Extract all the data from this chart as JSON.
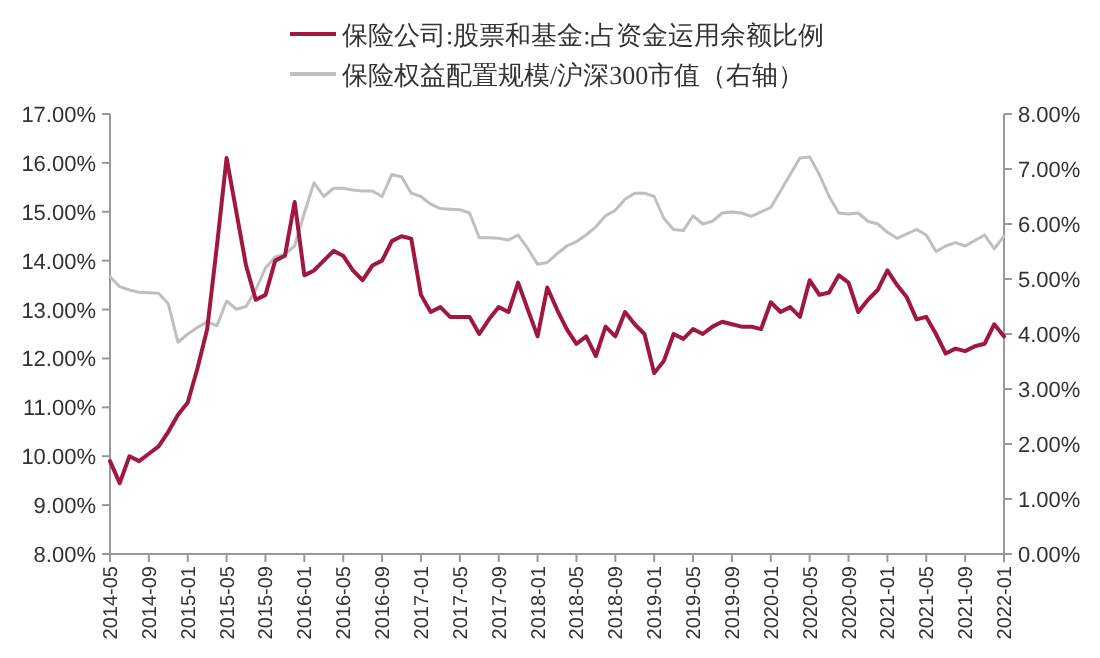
{
  "chart_data": {
    "type": "line",
    "legend": "top",
    "categories": [
      "2014-05",
      null,
      null,
      null,
      "2014-09",
      null,
      null,
      null,
      "2015-01",
      null,
      null,
      null,
      "2015-05",
      null,
      null,
      null,
      "2015-09",
      null,
      null,
      null,
      "2016-01",
      null,
      null,
      null,
      "2016-05",
      null,
      null,
      null,
      "2016-09",
      null,
      null,
      null,
      "2017-01",
      null,
      null,
      null,
      "2017-05",
      null,
      null,
      null,
      "2017-09",
      null,
      null,
      null,
      "2018-01",
      null,
      null,
      null,
      "2018-05",
      null,
      null,
      null,
      "2018-09",
      null,
      null,
      null,
      "2019-01",
      null,
      null,
      null,
      "2019-05",
      null,
      null,
      null,
      "2019-09",
      null,
      null,
      null,
      "2020-01",
      null,
      null,
      null,
      "2020-05",
      null,
      null,
      null,
      "2020-09",
      null,
      null,
      null,
      "2021-01",
      null,
      null,
      null,
      "2021-05",
      null,
      null,
      null,
      "2021-09",
      null,
      null,
      null,
      "2022-01"
    ],
    "series": [
      {
        "name": "保险公司:股票和基金:占资金运用余额比例",
        "color": "#a0173f",
        "values": [
          9.9,
          9.45,
          10.0,
          9.9,
          10.05,
          10.2,
          10.5,
          10.85,
          11.1,
          11.8,
          12.6,
          14.3,
          16.1,
          15.0,
          13.9,
          13.2,
          13.3,
          14.0,
          14.1,
          15.2,
          13.7,
          13.8,
          14.0,
          14.2,
          14.1,
          13.8,
          13.6,
          13.9,
          14.0,
          14.4,
          14.5,
          14.45,
          13.3,
          12.95,
          13.05,
          12.85,
          12.85,
          12.85,
          12.5,
          12.8,
          13.05,
          12.95,
          13.55,
          13.0,
          12.45,
          13.45,
          13.0,
          12.6,
          12.3,
          12.45,
          12.05,
          12.65,
          12.45,
          12.95,
          12.7,
          12.5,
          11.7,
          11.95,
          12.5,
          12.4,
          12.6,
          12.5,
          12.65,
          12.75,
          12.7,
          12.65,
          12.65,
          12.6,
          13.15,
          12.95,
          13.05,
          12.85,
          13.6,
          13.3,
          13.35,
          13.7,
          13.55,
          12.95,
          13.2,
          13.4,
          13.8,
          13.5,
          13.25,
          12.8,
          12.85,
          12.5,
          12.1,
          12.2,
          12.15,
          12.25,
          12.3,
          12.7,
          12.45
        ]
      },
      {
        "name": "保险权益配置规模/沪深300市值（右轴）",
        "color": "#bfbfbf",
        "axis": "y2",
        "values": [
          5.04,
          4.86,
          4.8,
          4.76,
          4.75,
          4.74,
          4.55,
          3.85,
          4.0,
          4.12,
          4.22,
          4.15,
          4.6,
          4.45,
          4.5,
          4.8,
          5.2,
          5.4,
          5.45,
          5.6,
          6.2,
          6.75,
          6.5,
          6.65,
          6.65,
          6.62,
          6.6,
          6.6,
          6.5,
          6.9,
          6.86,
          6.56,
          6.5,
          6.36,
          6.28,
          6.27,
          6.26,
          6.2,
          5.75,
          5.75,
          5.74,
          5.71,
          5.8,
          5.55,
          5.27,
          5.3,
          5.46,
          5.6,
          5.68,
          5.8,
          5.95,
          6.15,
          6.25,
          6.45,
          6.56,
          6.56,
          6.5,
          6.1,
          5.9,
          5.88,
          6.15,
          6.0,
          6.05,
          6.2,
          6.22,
          6.2,
          6.14,
          6.22,
          6.3,
          6.6,
          6.9,
          7.2,
          7.22,
          6.9,
          6.5,
          6.2,
          6.18,
          6.2,
          6.05,
          6.0,
          5.85,
          5.74,
          5.82,
          5.9,
          5.8,
          5.5,
          5.6,
          5.66,
          5.6,
          5.7,
          5.8,
          5.55,
          5.78
        ]
      }
    ],
    "ylim": [
      8,
      17
    ],
    "yticks": [
      {
        "value": 8,
        "label": "8.00%"
      },
      {
        "value": 9,
        "label": "9.00%"
      },
      {
        "value": 10,
        "label": "10.00%"
      },
      {
        "value": 11,
        "label": "11.00%"
      },
      {
        "value": 12,
        "label": "12.00%"
      },
      {
        "value": 13,
        "label": "13.00%"
      },
      {
        "value": 14,
        "label": "14.00%"
      },
      {
        "value": 15,
        "label": "15.00%"
      },
      {
        "value": 16,
        "label": "16.00%"
      },
      {
        "value": 17,
        "label": "17.00%"
      }
    ],
    "y2lim": [
      0,
      8
    ],
    "y2ticks": [
      {
        "value": 0,
        "label": "0.00%"
      },
      {
        "value": 1,
        "label": "1.00%"
      },
      {
        "value": 2,
        "label": "2.00%"
      },
      {
        "value": 3,
        "label": "3.00%"
      },
      {
        "value": 4,
        "label": "4.00%"
      },
      {
        "value": 5,
        "label": "5.00%"
      },
      {
        "value": 6,
        "label": "6.00%"
      },
      {
        "value": 7,
        "label": "7.00%"
      },
      {
        "value": 8,
        "label": "8.00%"
      }
    ]
  }
}
